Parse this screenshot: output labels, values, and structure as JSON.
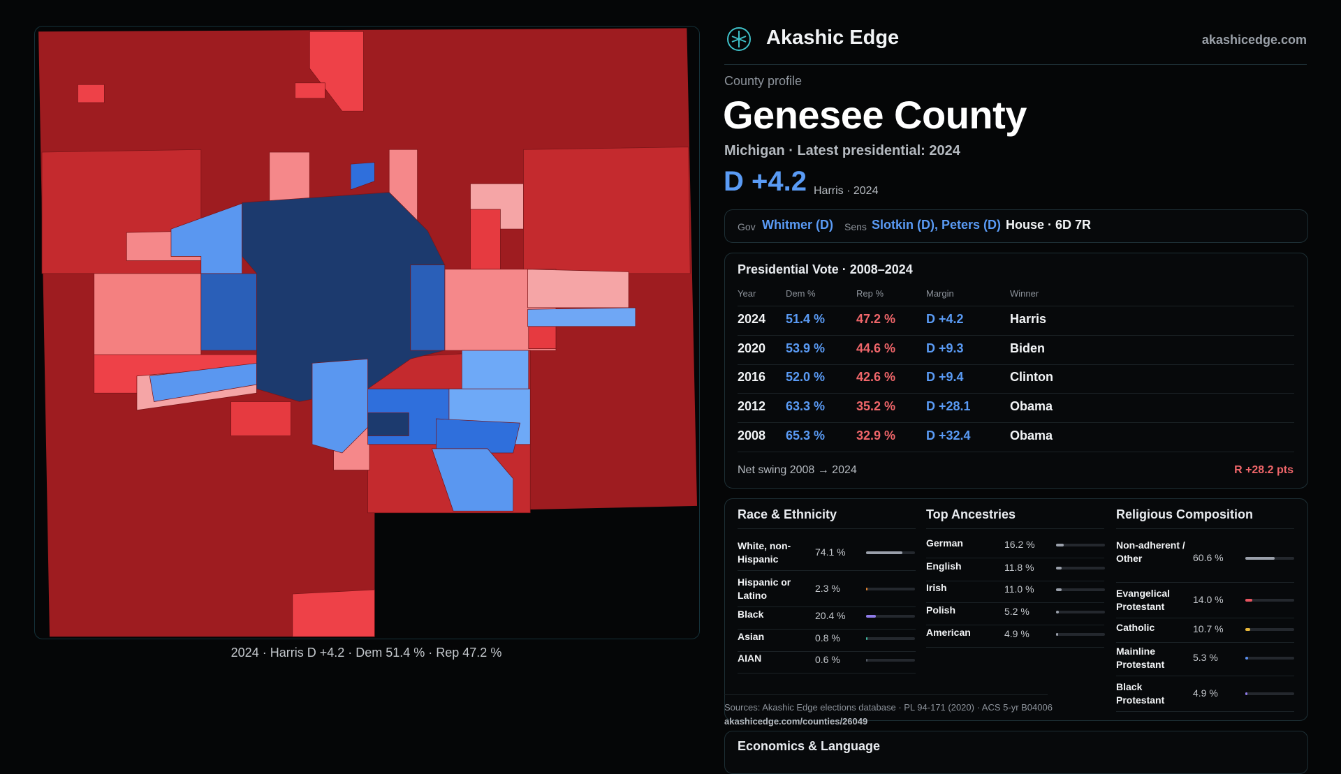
{
  "header": {
    "brand": "Akashic Edge",
    "site": "akashicedge.com"
  },
  "profile": {
    "eyebrow": "County profile",
    "name": "Genesee County",
    "subtitle": "Michigan · Latest presidential: 2024",
    "margin": "D +4.2",
    "margin_note": "Harris · 2024"
  },
  "officials": {
    "gov_label": "Gov",
    "gov": "Whitmer (D)",
    "sens_label": "Sens",
    "sens": "Slotkin (D), Peters (D)",
    "house": "House · 6D 7R"
  },
  "presidential": {
    "title": "Presidential Vote · 2008–2024",
    "columns": [
      "Year",
      "Dem %",
      "Rep %",
      "Margin",
      "Winner"
    ],
    "rows": [
      [
        "2024",
        "51.4 %",
        "47.2 %",
        "D +4.2",
        "Harris"
      ],
      [
        "2020",
        "53.9 %",
        "44.6 %",
        "D +9.3",
        "Biden"
      ],
      [
        "2016",
        "52.0 %",
        "42.6 %",
        "D +9.4",
        "Clinton"
      ],
      [
        "2012",
        "63.3 %",
        "35.2 %",
        "D +28.1",
        "Obama"
      ],
      [
        "2008",
        "65.3 %",
        "32.9 %",
        "D +32.4",
        "Obama"
      ]
    ],
    "swing_label": "Net swing 2008 → 2024",
    "swing_value": "R +28.2 pts"
  },
  "demographics": [
    {
      "title": "Race & Ethnicity",
      "rows": [
        {
          "label": "White, non-Hispanic",
          "value": 74.1,
          "value_label": "74.1 %",
          "color": "#9aa0ab"
        },
        {
          "label": "Hispanic or Latino",
          "value": 2.3,
          "value_label": "2.3 %",
          "color": "#e8862f"
        },
        {
          "label": "Black",
          "value": 20.4,
          "value_label": "20.4 %",
          "color": "#8f7be8"
        },
        {
          "label": "Asian",
          "value": 0.8,
          "value_label": "0.8 %",
          "color": "#3fb8a0"
        },
        {
          "label": "AIAN",
          "value": 0.6,
          "value_label": "0.6 %",
          "color": "#555b66"
        }
      ]
    },
    {
      "title": "Top Ancestries",
      "rows": [
        {
          "label": "German",
          "value": 16.2,
          "value_label": "16.2 %",
          "color": "#9aa0ab"
        },
        {
          "label": "English",
          "value": 11.8,
          "value_label": "11.8 %",
          "color": "#9aa0ab"
        },
        {
          "label": "Irish",
          "value": 11.0,
          "value_label": "11.0 %",
          "color": "#9aa0ab"
        },
        {
          "label": "Polish",
          "value": 5.2,
          "value_label": "5.2 %",
          "color": "#9aa0ab"
        },
        {
          "label": "American",
          "value": 4.9,
          "value_label": "4.9 %",
          "color": "#9aa0ab"
        }
      ]
    },
    {
      "title": "Religious Composition",
      "rows": [
        {
          "label": "Non-adherent / Other",
          "value": 60.6,
          "value_label": "60.6 %",
          "color": "#9aa0ab"
        },
        {
          "label": "Evangelical Protestant",
          "value": 14.0,
          "value_label": "14.0 %",
          "color": "#e85560"
        },
        {
          "label": "Catholic",
          "value": 10.7,
          "value_label": "10.7 %",
          "color": "#e8b83a"
        },
        {
          "label": "Mainline Protestant",
          "value": 5.3,
          "value_label": "5.3 %",
          "color": "#5a8ff0"
        },
        {
          "label": "Black Protestant",
          "value": 4.9,
          "value_label": "4.9 %",
          "color": "#8f7be8"
        }
      ]
    }
  ],
  "sources": "Sources: Akashic Edge elections database · PL 94-171 (2020) · ACS 5-yr B04006",
  "url": "akashicedge.com/counties/26049",
  "economics_title": "Economics & Language",
  "map_caption": "2024 · Harris D +4.2 · Dem 51.4 % · Rep 47.2 %"
}
